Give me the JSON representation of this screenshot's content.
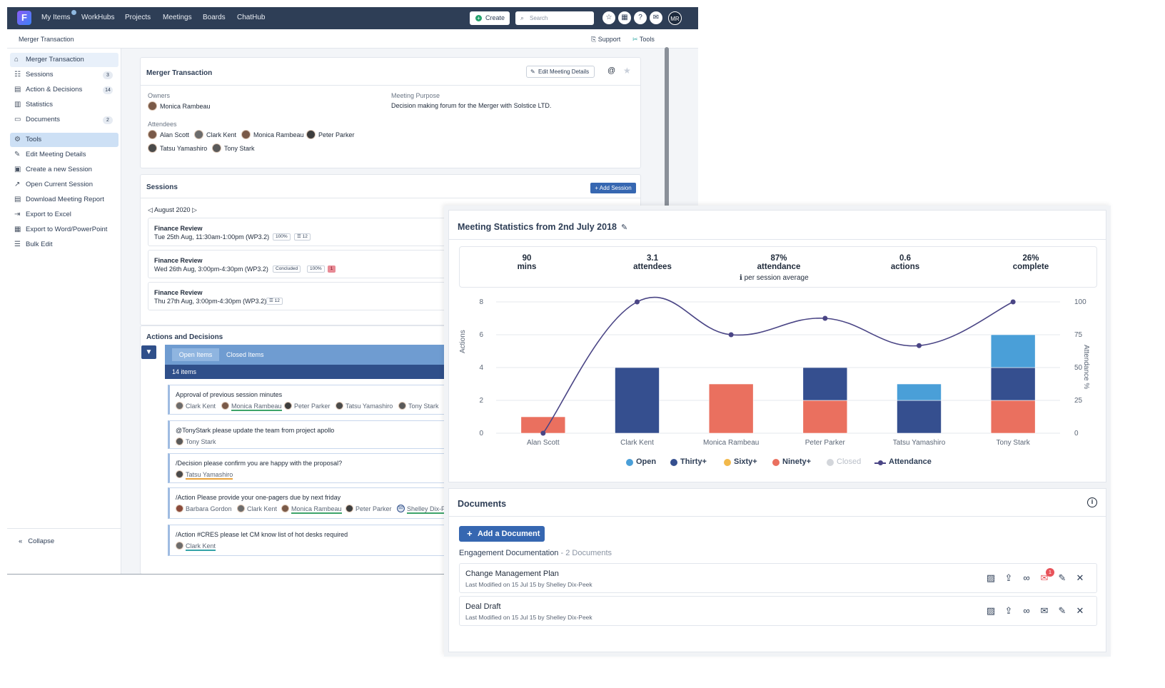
{
  "topnav": {
    "logo_letter": "F",
    "items": [
      "My Items",
      "WorkHubs",
      "Projects",
      "Meetings",
      "Boards",
      "ChatHub"
    ],
    "create_label": "Create",
    "search_placeholder": "Search",
    "avatar_initials": "MR"
  },
  "subheader": {
    "title": "Merger Transaction",
    "support": "Support",
    "tools": "Tools"
  },
  "sidebar": {
    "items": [
      {
        "label": "Merger Transaction",
        "icon": "home-icon"
      },
      {
        "label": "Sessions",
        "count": "3",
        "icon": "users-icon"
      },
      {
        "label": "Action & Decisions",
        "count": "14",
        "icon": "clipboard-icon"
      },
      {
        "label": "Statistics",
        "icon": "chart-icon"
      },
      {
        "label": "Documents",
        "count": "2",
        "icon": "document-icon"
      },
      {
        "label": "Tools",
        "icon": "gear-icon"
      },
      {
        "label": "Edit Meeting Details",
        "icon": "pencil-icon"
      },
      {
        "label": "Create a new Session",
        "icon": "calendar-plus-icon"
      },
      {
        "label": "Open Current Session",
        "icon": "external-link-icon"
      },
      {
        "label": "Download Meeting Report",
        "icon": "download-icon"
      },
      {
        "label": "Export to Excel",
        "icon": "export-icon"
      },
      {
        "label": "Export to Word/PowerPoint",
        "icon": "export-doc-icon"
      },
      {
        "label": "Bulk Edit",
        "icon": "list-edit-icon"
      }
    ],
    "collapse": "Collapse"
  },
  "meeting": {
    "title": "Merger Transaction",
    "edit_button": "Edit Meeting Details",
    "owners_label": "Owners",
    "owner": "Monica Rambeau",
    "purpose_label": "Meeting Purpose",
    "purpose": "Decision making forum for the Merger with Solstice LTD.",
    "attendees_label": "Attendees",
    "attendees": [
      "Alan Scott",
      "Clark Kent",
      "Monica Rambeau",
      "Peter Parker",
      "Tatsu Yamashiro",
      "Tony Stark"
    ]
  },
  "sessions": {
    "title": "Sessions",
    "add_button": "+ Add Session",
    "month": "August 2020",
    "rows": [
      {
        "name": "Finance Review",
        "when": "Tue 25th Aug, 11:30am-1:00pm (WP3.2)",
        "chips": [
          "100%",
          "12"
        ]
      },
      {
        "name": "Finance Review",
        "when": "Wed 26th Aug, 3:00pm-4:30pm (WP3.2)",
        "chips": [
          "Concluded",
          "100%"
        ],
        "flag": "1"
      },
      {
        "name": "Finance Review",
        "when": "Thu 27th Aug, 3:00pm-4:30pm (WP3.2)",
        "chips": [
          "12"
        ]
      }
    ]
  },
  "actions": {
    "title": "Actions and Decisions",
    "tab_open": "Open Items",
    "tab_closed": "Closed Items",
    "count": "14 items",
    "rows": [
      {
        "title": "Approval of previous session minutes",
        "people": [
          "Clark Kent",
          "Monica Rambeau",
          "Peter Parker",
          "Tatsu Yamashiro",
          "Tony Stark"
        ]
      },
      {
        "title": "@TonyStark please update the team from project apollo",
        "people": [
          "Tony Stark"
        ]
      },
      {
        "title": "/Decision please confirm you are happy with the proposal?",
        "people": [
          "Tatsu Yamashiro"
        ]
      },
      {
        "title": "/Action Please provide your one-pagers due by next friday",
        "people": [
          "Barbara Gordon",
          "Clark Kent",
          "Monica Rambeau",
          "Peter Parker",
          "Shelley Dix-P"
        ],
        "initials": "SD"
      },
      {
        "title": "/Action #CRES please let CM know list of hot desks required",
        "people": [
          "Clark Kent"
        ]
      }
    ]
  },
  "stats": {
    "title": "Meeting Statistics from 2nd July 2018",
    "summary": [
      {
        "value": "90",
        "unit": "mins"
      },
      {
        "value": "3.1",
        "unit": "attendees"
      },
      {
        "value": "87%",
        "unit": "attendance"
      },
      {
        "value": "0.6",
        "unit": "actions"
      },
      {
        "value": "26%",
        "unit": "complete"
      }
    ],
    "note": "per session average"
  },
  "chart_data": {
    "type": "bar",
    "stacked": true,
    "categories": [
      "Alan Scott",
      "Clark Kent",
      "Monica Rambeau",
      "Peter Parker",
      "Tatsu Yamashiro",
      "Tony Stark"
    ],
    "series": [
      {
        "name": "Open",
        "color": "#4a9fd8",
        "values": [
          0,
          0,
          0,
          0,
          1,
          2
        ]
      },
      {
        "name": "Thirty+",
        "color": "#354f8f",
        "values": [
          0,
          4,
          0,
          2,
          2,
          2
        ]
      },
      {
        "name": "Sixty+",
        "color": "#f2b94b",
        "values": [
          0,
          0,
          0,
          0,
          0,
          0
        ]
      },
      {
        "name": "Ninety+",
        "color": "#ea705f",
        "values": [
          1,
          0,
          3,
          2,
          0,
          2
        ]
      },
      {
        "name": "Closed",
        "color": "#d3d6db",
        "values": [
          0,
          0,
          0,
          0,
          0,
          0
        ]
      }
    ],
    "line": {
      "name": "Attendance",
      "color": "#4a4585",
      "values": [
        0,
        100,
        75,
        87.5,
        66.7,
        100
      ]
    },
    "ylabel": "Actions",
    "y2label": "Attendance %",
    "ylim": [
      0,
      8
    ],
    "yticks": [
      "0",
      "2",
      "4",
      "6",
      "8"
    ],
    "y2lim": [
      0,
      100
    ],
    "y2ticks": [
      "0",
      "25",
      "50",
      "75",
      "100"
    ],
    "legend": "bottom"
  },
  "documents": {
    "title": "Documents",
    "add_button": "Add a Document",
    "group": "Engagement Documentation",
    "group_count": "- 2 Documents",
    "rows": [
      {
        "name": "Change Management Plan",
        "meta": "Last Modified on 15 Jul 15  by  Shelley Dix-Peek",
        "comment_badge": "1"
      },
      {
        "name": "Deal Draft",
        "meta": "Last Modified on 15 Jul 15  by  Shelley Dix-Peek"
      }
    ]
  }
}
